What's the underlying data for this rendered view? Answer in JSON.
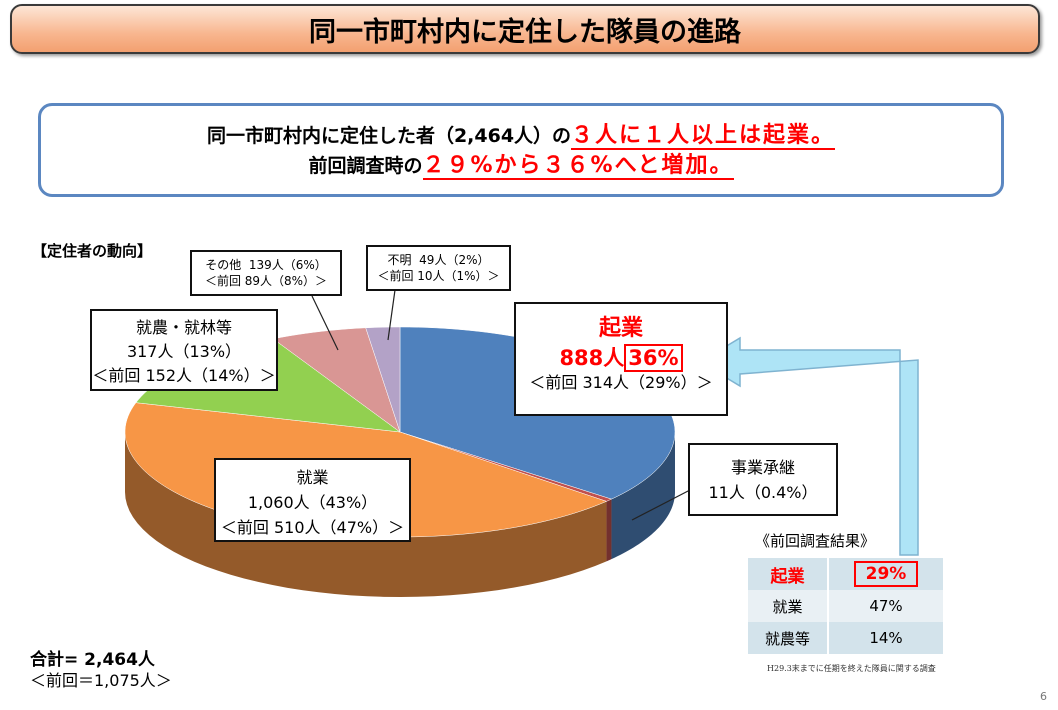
{
  "title": "同一市町村内に定住した隊員の進路",
  "summary": {
    "line1_prefix": "同一市町村内に定住した者（2,464人）の",
    "line1_highlight": "３人に１人以上は起業。",
    "line2_prefix": "前回調査時の",
    "line2_highlight": "２９%から３６%へと増加。"
  },
  "section_label": "【定住者の動向】",
  "labels": {
    "kigyo": {
      "name": "起業",
      "value": "888人",
      "pct": "36%",
      "prev": "＜前回 314人（29%）＞"
    },
    "shokei": {
      "name": "事業承継",
      "value": "11人（0.4%）"
    },
    "shugyo": {
      "name": "就業",
      "value": "1,060人（43%）",
      "prev": "＜前回 510人（47%）＞"
    },
    "shuno": {
      "name": "就農・就林等",
      "value": "317人（13%）",
      "prev": "＜前回 152人（14%）＞"
    },
    "sonota": {
      "name": "その他",
      "value": "139人（6%）",
      "prev": "＜前回 89人（8%）＞"
    },
    "fumei": {
      "name": "不明",
      "value": "49人（2%）",
      "prev": "＜前回 10人（1%）＞"
    }
  },
  "chart_data": {
    "type": "pie",
    "title": "定住者の動向",
    "total": 2464,
    "slices": [
      {
        "label": "起業",
        "value": 888,
        "pct": 36,
        "color": "#4f81bd"
      },
      {
        "label": "事業承継",
        "value": 11,
        "pct": 0.4,
        "color": "#c0504d"
      },
      {
        "label": "就業",
        "value": 1060,
        "pct": 43,
        "color": "#f79646"
      },
      {
        "label": "就農・就林等",
        "value": 317,
        "pct": 13,
        "color": "#92d050"
      },
      {
        "label": "その他",
        "value": 139,
        "pct": 6,
        "color": "#d99694"
      },
      {
        "label": "不明",
        "value": 49,
        "pct": 2,
        "color": "#b3a2c7"
      }
    ]
  },
  "total": {
    "line1": "合計= 2,464人",
    "line2": "＜前回＝1,075人＞"
  },
  "previous": {
    "heading": "《前回調査結果》",
    "rows": [
      {
        "label": "起業",
        "value": "29%"
      },
      {
        "label": "就業",
        "value": "47%"
      },
      {
        "label": "就農等",
        "value": "14%"
      }
    ]
  },
  "note": "H29.3末までに任期を終えた隊員に関する調査",
  "page_number": "6"
}
